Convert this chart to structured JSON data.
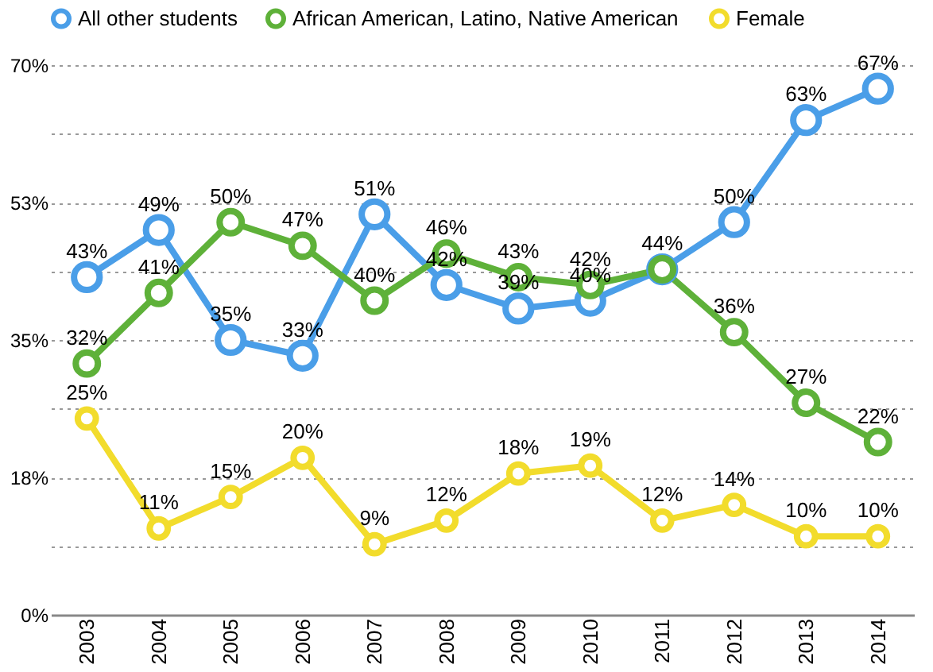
{
  "chart_data": {
    "type": "line",
    "categories": [
      "2003",
      "2004",
      "2005",
      "2006",
      "2007",
      "2008",
      "2009",
      "2010",
      "2011",
      "2012",
      "2013",
      "2014"
    ],
    "series": [
      {
        "name": "All other students",
        "color": "#4a9ee8",
        "values": [
          43,
          49,
          35,
          33,
          51,
          42,
          39,
          40,
          44,
          50,
          63,
          67
        ],
        "value_labels": [
          "43%",
          "49%",
          "35%",
          "33%",
          "51%",
          "42%",
          "39%",
          "40%",
          null,
          "50%",
          "63%",
          "67%"
        ]
      },
      {
        "name": "African American, Latino, Native American",
        "color": "#5eb139",
        "values": [
          32,
          41,
          50,
          47,
          40,
          46,
          43,
          42,
          44,
          36,
          27,
          22
        ],
        "value_labels": [
          "32%",
          "41%",
          "50%",
          "47%",
          "40%",
          "46%",
          "43%",
          "42%",
          "44%",
          "36%",
          "27%",
          "22%"
        ]
      },
      {
        "name": "Female",
        "color": "#f2dc2c",
        "values": [
          25,
          11,
          15,
          20,
          9,
          12,
          18,
          19,
          12,
          14,
          10,
          10
        ],
        "value_labels": [
          "25%",
          "11%",
          "15%",
          "20%",
          "9%",
          "12%",
          "18%",
          "19%",
          "12%",
          "14%",
          "10%",
          "10%"
        ]
      }
    ],
    "ylim": [
      0,
      70
    ],
    "yticks": [
      {
        "value": 0,
        "label": "0%"
      },
      {
        "value": 8.75,
        "label": null
      },
      {
        "value": 17.5,
        "label": "18%"
      },
      {
        "value": 26.25,
        "label": null
      },
      {
        "value": 35,
        "label": "35%"
      },
      {
        "value": 43.75,
        "label": null
      },
      {
        "value": 52.5,
        "label": "53%"
      },
      {
        "value": 61.25,
        "label": null
      },
      {
        "value": 70,
        "label": "70%"
      }
    ],
    "grid": "y",
    "legend": "top",
    "marker": "circle",
    "line_style": "solid"
  }
}
